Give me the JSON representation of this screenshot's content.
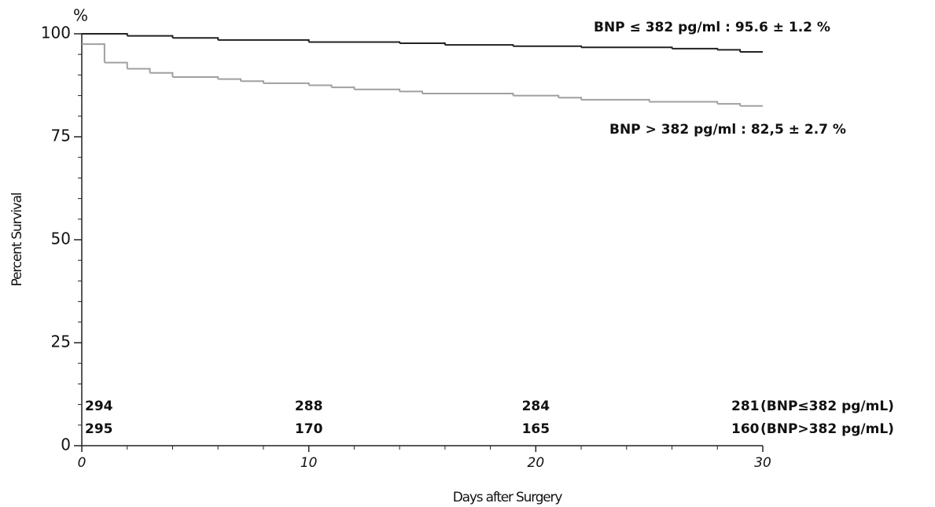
{
  "chart_data": {
    "type": "step",
    "y_unit_label": "%",
    "ylabel": "Percent Survival",
    "xlabel": "Days after Surgery",
    "xlim": [
      0,
      30
    ],
    "ylim": [
      0,
      100
    ],
    "xticks": [
      0,
      10,
      20,
      30
    ],
    "yticks": [
      0,
      25,
      50,
      75,
      100
    ],
    "xminorticks": [
      2,
      4,
      6,
      8,
      12,
      14,
      16,
      18,
      22,
      24,
      26,
      28
    ],
    "yminorticks": [
      5,
      10,
      15,
      20,
      30,
      35,
      40,
      45,
      55,
      60,
      65,
      70,
      80,
      85,
      90,
      95
    ],
    "series": [
      {
        "name": "BNP ≤ 382 pg/ml : 95.6 ± 1.2 %",
        "color": "#222222",
        "x": [
          0,
          2,
          4,
          6,
          10,
          14,
          16,
          19,
          22,
          26,
          28,
          29,
          30
        ],
        "values": [
          100,
          99.5,
          99,
          98.5,
          98,
          97.7,
          97.3,
          97,
          96.7,
          96.4,
          96.1,
          95.6,
          95.6
        ]
      },
      {
        "name": "BNP > 382 pg/ml : 82,5 ± 2.7 %",
        "color": "#a0a0a0",
        "x": [
          0,
          1,
          2,
          3,
          4,
          6,
          7,
          8,
          10,
          11,
          12,
          14,
          15,
          19,
          21,
          22,
          25,
          28,
          29,
          30
        ],
        "values": [
          97.5,
          93,
          91.5,
          90.5,
          89.5,
          89,
          88.5,
          88,
          87.5,
          87,
          86.5,
          86,
          85.5,
          85,
          84.5,
          84,
          83.5,
          83,
          82.5,
          82.5
        ]
      }
    ],
    "risk_table": {
      "days": [
        0,
        10,
        20,
        30
      ],
      "rows": [
        {
          "counts": [
            294,
            288,
            284,
            281
          ],
          "label": "(BNP≤382 pg/mL)"
        },
        {
          "counts": [
            295,
            170,
            165,
            160
          ],
          "label": "(BNP>382 pg/mL)"
        }
      ]
    }
  }
}
